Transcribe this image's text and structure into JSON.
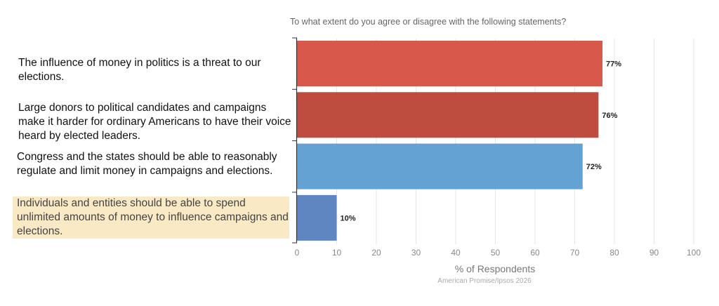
{
  "chart_data": {
    "type": "bar",
    "orientation": "horizontal",
    "title": "To what extent do you agree or disagree with the following statements?",
    "categories": [
      "The influence of money in politics is a threat to our elections.",
      "Large donors to political candidates and campaigns make it harder for ordinary Americans to have their voice heard by elected leaders.",
      "Congress and the states should be able to reasonably regulate and limit money in campaigns and elections.",
      "Individuals and entities should be able to spend unlimited amounts of money to influence campaigns and elections."
    ],
    "values": [
      77,
      76,
      72,
      10
    ],
    "data_labels": [
      "77%",
      "76%",
      "72%",
      "10%"
    ],
    "colors": [
      "#d9584c",
      "#bf4d3f",
      "#64a2d3",
      "#5f86c0"
    ],
    "highlight_color": "#f9e9c4",
    "highlighted_category_index": 3,
    "xlabel": "% of Respondents",
    "xlim": [
      0,
      100
    ],
    "xticks": [
      "0",
      "10",
      "20",
      "30",
      "40",
      "50",
      "60",
      "70",
      "80",
      "90",
      "100"
    ],
    "grid": true,
    "source": "American Promise/Ipsos 2026"
  }
}
